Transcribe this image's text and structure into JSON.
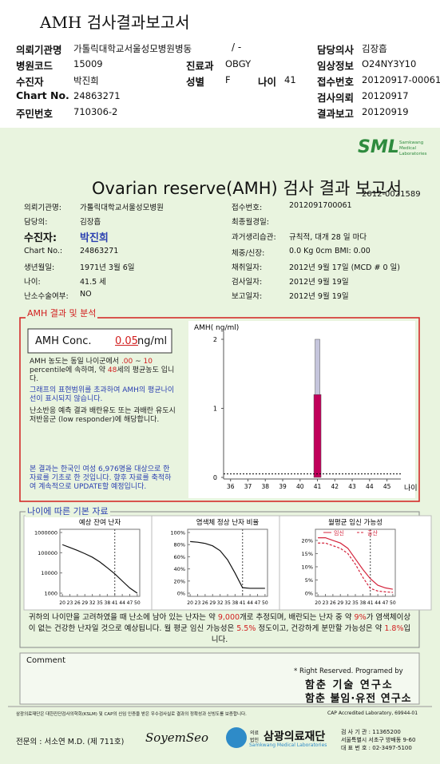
{
  "header": {
    "title": "AMH 검사결과보고서",
    "ward": "/ -",
    "fields": [
      {
        "label": "의뢰기관명",
        "value": "가톨릭대학교서울성모병원병동"
      },
      {
        "label": "담당의사",
        "value": "김장흡"
      },
      {
        "label": "병원코드",
        "value": "15009"
      },
      {
        "label": "진료과",
        "value": "OBGY"
      },
      {
        "label": "임상정보",
        "value": "O24NY3Y10"
      },
      {
        "label": "수진자",
        "value": "박진희"
      },
      {
        "label": "성별",
        "value": "F"
      },
      {
        "label": "나이",
        "value": "41"
      },
      {
        "label": "접수번호",
        "value": "20120917-00061"
      },
      {
        "label": "Chart No.",
        "value": "24863271"
      },
      {
        "label": "검사의뢰",
        "value": "20120917"
      },
      {
        "label": "주민번호",
        "value": "710306-2"
      },
      {
        "label": "결과보고",
        "value": "20120919"
      }
    ]
  },
  "report": {
    "logo": "SML",
    "logo_sub": "Samkwang Medical Laboratories",
    "title": "Ovarian reserve(AMH) 검사 결과 보고서",
    "report_no": "2012-0021589",
    "left": [
      {
        "label": "의뢰기관명:",
        "value": "가톨릭대학교서울성모병원"
      },
      {
        "label": "담당의:",
        "value": "김장흡"
      },
      {
        "label": "수진자:",
        "value": "박진희"
      },
      {
        "label": "Chart No.:",
        "value": "24863271"
      },
      {
        "label": "생년월일:",
        "value": "1971년 3월 6일"
      },
      {
        "label": "나이:",
        "value": "41.5 세"
      },
      {
        "label": "난소수술여부:",
        "value": "NO"
      }
    ],
    "right": [
      {
        "label": "접수번호:",
        "value": "2012091700061"
      },
      {
        "label": "최종월경일:"
      },
      {
        "label": "과거생리습관:",
        "value": "규칙적, 대개  28 일 마다"
      },
      {
        "label": "체중/신장:",
        "value": "0.0 Kg     0cm    BMI:  0.00"
      },
      {
        "label": "채취일자:",
        "value": "2012년 9월 17일   (MCD # 0 일)"
      },
      {
        "label": "검사일자:",
        "value": "2012년 9월 19일"
      },
      {
        "label": "보고일자:",
        "value": "2012년 9월 19일"
      }
    ]
  },
  "amh": {
    "heading": "AMH 결과 및 분석",
    "conc_label": "AMH Conc.",
    "conc_value": 0.05,
    "conc_unit": "ng/ml",
    "paragraphs": [
      {
        "color": "#222",
        "runs": [
          "AMH 농도는 동일 나이군에서 ",
          ".00",
          " ~ ",
          "10",
          " percentile에 속하며, 약 ",
          "48",
          "세의 평균농도 입니다."
        ]
      },
      {
        "color": "#2a3fb0",
        "runs": [
          "그래프의 표현범위를 초과하여 AMH의 평균나이선이 표시되지 않습니다."
        ]
      },
      {
        "color": "#222",
        "runs": [
          "난소반응 예측 결과 배란유도 또는 과배란 유도시 저반응군 (low responder)에 해당합니다."
        ]
      },
      {
        "color": "#2a3fb0",
        "runs": [
          "본 결과는 한국인 여성 6,976명을 대상으로 한 자료를 기초로 한 것입니다. 향후 자료를 축적하여 계속적으로 UPDATE할 예정입니다."
        ]
      }
    ],
    "chart": {
      "type": "bar",
      "y_label": "AMH( ng/ml)",
      "x_label": "나이",
      "xlim": [
        35.6,
        45.8
      ],
      "xticks": [
        36,
        37,
        38,
        39,
        40,
        41,
        42,
        43,
        44,
        45
      ],
      "ylim": [
        0,
        2
      ],
      "yticks": [
        0,
        1,
        2
      ],
      "bar_x": 41,
      "segments": [
        {
          "color": "#c0005a",
          "values": [
            0,
            1.2
          ]
        },
        {
          "color": "#c5c5dc",
          "values": [
            1.2,
            2
          ]
        }
      ]
    }
  },
  "basics": {
    "heading": "나이에 따른 기본 자료",
    "charts": [
      {
        "type": "line",
        "title": "예상 잔여 난자",
        "log_scale": true,
        "x": [
          20,
          23,
          26,
          29,
          32,
          35,
          38,
          41,
          44,
          47,
          50
        ],
        "xlim": [
          19,
          51
        ],
        "xticks": [
          20,
          23,
          26,
          29,
          32,
          35,
          38,
          41,
          44,
          47,
          50
        ],
        "ylim": [
          1000,
          1000000
        ],
        "yticks": [
          1000,
          10000,
          100000,
          1000000
        ],
        "marker_x": 41,
        "series": [
          {
            "color": "#111",
            "values": [
              250000,
              180000,
              130000,
              90000,
              60000,
              35000,
              18000,
              9000,
              4000,
              1800,
              1000
            ]
          }
        ]
      },
      {
        "type": "line",
        "title": "염색체 정상 난자 비율",
        "log_scale": false,
        "x": [
          20,
          23,
          26,
          29,
          32,
          35,
          38,
          41,
          44,
          47,
          50
        ],
        "xlim": [
          19,
          51
        ],
        "xticks": [
          20,
          23,
          26,
          29,
          32,
          35,
          38,
          41,
          44,
          47,
          50
        ],
        "ylim": [
          0,
          100
        ],
        "yticks": [
          {
            "value": 0,
            "label": "0%"
          },
          {
            "value": 20,
            "label": "20%"
          },
          {
            "value": 40,
            "label": "40%"
          },
          {
            "value": 60,
            "label": "60%"
          },
          {
            "value": 80,
            "label": "80%"
          },
          {
            "value": 100,
            "label": "100%"
          }
        ],
        "marker_x": 41,
        "series": [
          {
            "color": "#111",
            "values": [
              85,
              84,
              82,
              78,
              70,
              55,
              33,
              9,
              8,
              8,
              8
            ]
          }
        ]
      },
      {
        "type": "line",
        "title": "월평균 임신 가능성",
        "log_scale": false,
        "x": [
          20,
          23,
          26,
          29,
          32,
          35,
          38,
          41,
          44,
          47,
          50
        ],
        "xlim": [
          19,
          51
        ],
        "xticks": [
          20,
          23,
          26,
          29,
          32,
          35,
          38,
          41,
          44,
          47,
          50
        ],
        "ylim": [
          0,
          23
        ],
        "yticks": [
          {
            "value": 0,
            "label": "0%"
          },
          {
            "value": 5,
            "label": "5%"
          },
          {
            "value": 10,
            "label": "10%"
          },
          {
            "value": 15,
            "label": "15%"
          },
          {
            "value": 20,
            "label": "20%"
          }
        ],
        "marker_x": 41,
        "legend": "top",
        "series": [
          {
            "name": "임신",
            "color": "#d4243c",
            "dash": false,
            "values": [
              21,
              21,
              20,
              19,
              17,
              13,
              9,
              5.5,
              3,
              2,
              1.5
            ]
          },
          {
            "name": "출산",
            "color": "#d4243c",
            "dash": true,
            "values": [
              19,
              19,
              18,
              17,
              15,
              11,
              6,
              1.8,
              0.8,
              0.5,
              0.3
            ]
          }
        ]
      }
    ],
    "summary": [
      "귀하의 나이만을 고려하였을 때 난소에 남아 있는 난자는 약 ",
      "9,000",
      "개로 추정되며, 배란되는 난자 중 약 ",
      "9%",
      "가 염색체이상이 없는 건강한 난자일 것으로 예상됩니다. 월 평균 임신 가능성은 ",
      "5.5%",
      " 정도이고, 건강하게 분만할 가능성은 약 ",
      "1.8%",
      "입니다."
    ]
  },
  "comment": {
    "label": "Comment",
    "credit": "* Right Reserved. Programed by",
    "labs": [
      "함춘 기술 연구소",
      "함춘 불임·유전 연구소"
    ]
  },
  "footer": {
    "notice": "삼광의료재단은 대한진단검사의학회(KSLM) 및 CAP의 신임 인증을 받은 우수검사실로 결과의 정확성과 신빙도를 보증합니다.",
    "cap": "CAP Accredited Laboratory, 69944-01",
    "doctor": "전문의 : 서소연 M.D. (제 711호)",
    "signature": "SoyemSeo",
    "org_prefix": "의료법인",
    "org": "삼광의료재단",
    "org_en": "Samkwang Medical Laboratories",
    "contacts": [
      "검 사 기 관 : 11365200",
      "서울특별시 서초구 방배동 9-60",
      "대 표 번 호 : 02-3497-5100"
    ]
  }
}
